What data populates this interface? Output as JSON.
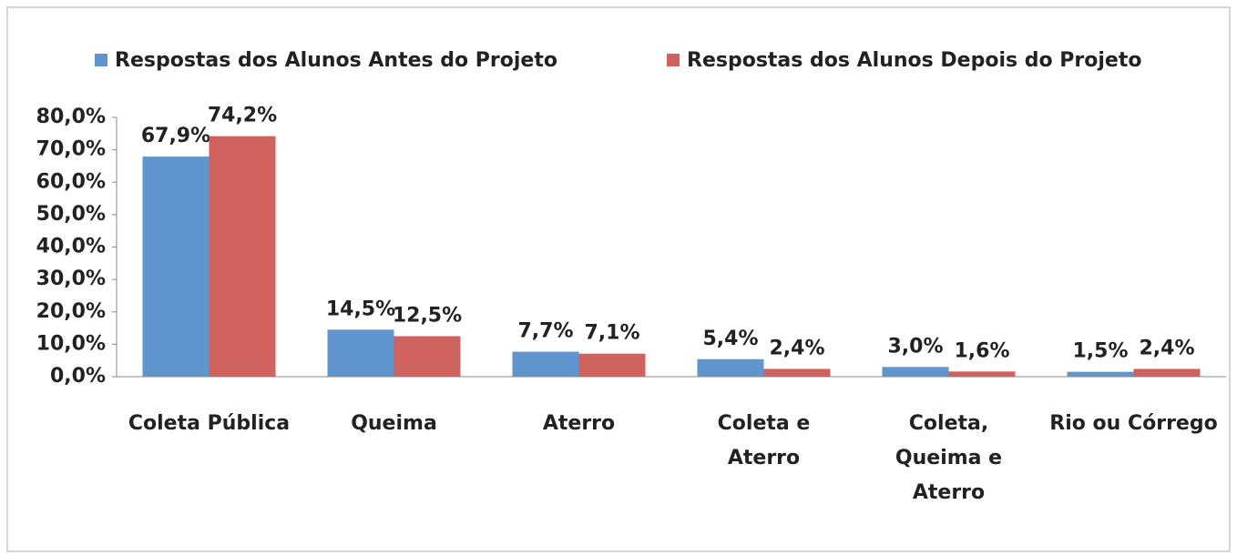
{
  "chart_data": {
    "type": "bar",
    "categories": [
      "Coleta Pública",
      "Queima",
      "Aterro",
      "Coleta e\nAterro",
      "Coleta,\nQueima e\nAterro",
      "Rio ou Córrego"
    ],
    "series": [
      {
        "name": "Respostas dos Alunos Antes do Projeto",
        "color": "#6096cd",
        "values": [
          67.9,
          14.5,
          7.7,
          5.4,
          3.0,
          1.5
        ],
        "value_labels": [
          "67,9%",
          "14,5%",
          "7,7%",
          "5,4%",
          "3,0%",
          "1,5%"
        ]
      },
      {
        "name": "Respostas dos Alunos Depois do Projeto",
        "color": "#cf625e",
        "values": [
          74.2,
          12.5,
          7.1,
          2.4,
          1.6,
          2.4
        ],
        "value_labels": [
          "74,2%",
          "12,5%",
          "7,1%",
          "2,4%",
          "1,6%",
          "2,4%"
        ]
      }
    ],
    "ylim": [
      0,
      80
    ],
    "yticks": [
      {
        "value": 0,
        "label": "0,0%"
      },
      {
        "value": 10,
        "label": "10,0%"
      },
      {
        "value": 20,
        "label": "20,0%"
      },
      {
        "value": 30,
        "label": "30,0%"
      },
      {
        "value": 40,
        "label": "40,0%"
      },
      {
        "value": 50,
        "label": "50,0%"
      },
      {
        "value": 60,
        "label": "60,0%"
      },
      {
        "value": 70,
        "label": "70,0%"
      },
      {
        "value": 80,
        "label": "80,0%"
      }
    ],
    "legend": "top"
  }
}
